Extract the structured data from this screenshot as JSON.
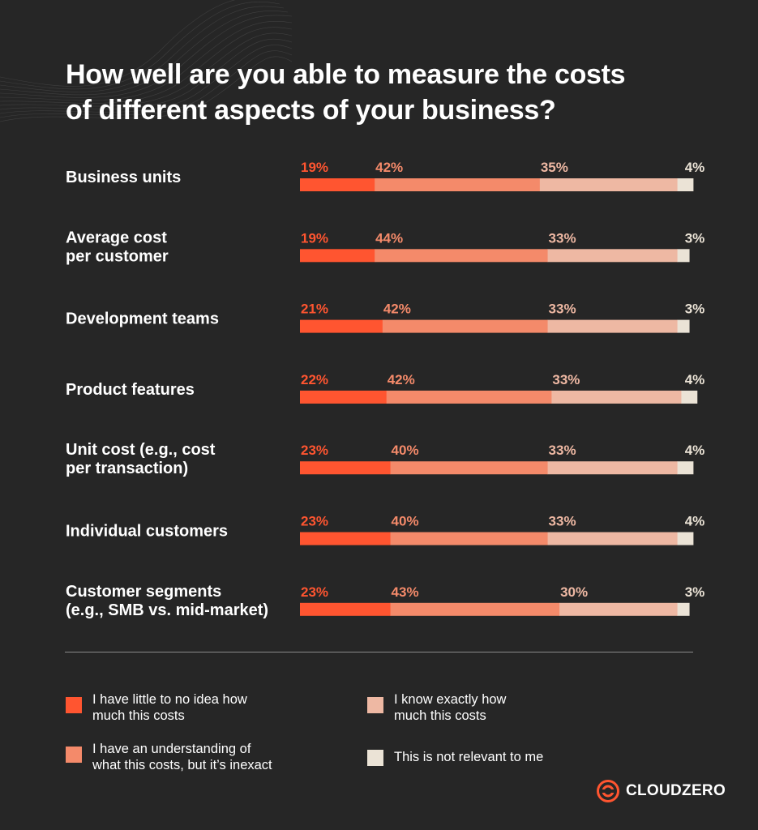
{
  "title_lines": [
    "How well are you able to measure the costs",
    "of different aspects of your business?"
  ],
  "colors": {
    "background": "#262626",
    "no_idea": "#ff5530",
    "inexact": "#f48a6a",
    "exact": "#eeb8a3",
    "not_relevant": "#ebe3d6"
  },
  "chart_data": {
    "type": "bar",
    "orientation": "horizontal",
    "stacked": true,
    "normalized_percent": true,
    "categories": [
      [
        "Business units"
      ],
      [
        "Average cost",
        "per customer"
      ],
      [
        "Development teams"
      ],
      [
        "Product features"
      ],
      [
        "Unit cost (e.g., cost",
        "per transaction)"
      ],
      [
        "Individual customers"
      ],
      [
        "Customer segments",
        "(e.g., SMB vs. mid-market)"
      ]
    ],
    "series": [
      {
        "name": "I have little to no idea how much this costs",
        "color": "#ff5530",
        "values": [
          19,
          19,
          21,
          22,
          23,
          23,
          23
        ]
      },
      {
        "name": "I have an understanding of what this costs, but it’s inexact",
        "color": "#f48a6a",
        "values": [
          42,
          44,
          42,
          42,
          40,
          40,
          43
        ]
      },
      {
        "name": "I know exactly how much this costs",
        "color": "#eeb8a3",
        "values": [
          35,
          33,
          33,
          33,
          33,
          33,
          30
        ]
      },
      {
        "name": "This is not relevant to me",
        "color": "#ebe3d6",
        "values": [
          4,
          3,
          3,
          4,
          4,
          4,
          3
        ]
      }
    ],
    "value_suffix": "%",
    "xlim": [
      0,
      100
    ],
    "grid": false,
    "legend_position": "bottom"
  },
  "legend": [
    {
      "lines": [
        "I have little to no idea how",
        "much this costs"
      ],
      "color": "#ff5530"
    },
    {
      "lines": [
        "I know exactly how",
        "much this costs"
      ],
      "color": "#eeb8a3"
    },
    {
      "lines": [
        "I have an understanding of",
        "what this costs, but it’s inexact"
      ],
      "color": "#f48a6a"
    },
    {
      "lines": [
        "This is not relevant to me"
      ],
      "color": "#ebe3d6"
    }
  ],
  "brand": {
    "name": "CLOUDZERO",
    "icon": "cloudzero-logo-icon"
  }
}
